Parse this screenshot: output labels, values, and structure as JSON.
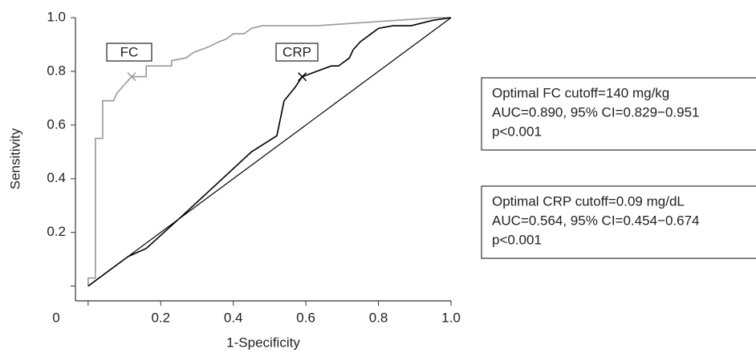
{
  "chart_data": {
    "type": "line",
    "xlabel": "1-Specificity",
    "ylabel": "Sensitivity",
    "xlim": [
      -0.035,
      1.0
    ],
    "ylim": [
      -0.055,
      1.0
    ],
    "xticks": [
      0,
      0.2,
      0.4,
      0.6,
      0.8,
      {
        "value": 1,
        "label": "1.0"
      }
    ],
    "yticks": [
      0,
      0.2,
      0.4,
      0.6,
      0.8,
      {
        "value": 1,
        "label": "1.0"
      }
    ],
    "reference": {
      "x": [
        0,
        1
      ],
      "values": [
        0,
        1
      ],
      "color": "#000000"
    },
    "series": [
      {
        "name": "FC",
        "color": "#999999",
        "x": [
          0,
          0,
          0.02,
          0.02,
          0.04,
          0.04,
          0.07,
          0.08,
          0.1,
          0.12,
          0.16,
          0.16,
          0.23,
          0.23,
          0.27,
          0.29,
          0.31,
          0.33,
          0.36,
          0.38,
          0.4,
          0.43,
          0.45,
          0.48,
          0.63,
          0.96,
          1.0
        ],
        "values": [
          0,
          0.03,
          0.03,
          0.55,
          0.55,
          0.69,
          0.69,
          0.72,
          0.75,
          0.78,
          0.78,
          0.82,
          0.82,
          0.84,
          0.85,
          0.87,
          0.88,
          0.89,
          0.91,
          0.92,
          0.94,
          0.94,
          0.96,
          0.97,
          0.97,
          1.0,
          1.0
        ],
        "cutoff": {
          "x": 0.12,
          "y": 0.78
        }
      },
      {
        "name": "CRP",
        "color": "#000000",
        "x": [
          0,
          0.11,
          0.16,
          0.25,
          0.45,
          0.52,
          0.54,
          0.57,
          0.59,
          0.63,
          0.67,
          0.69,
          0.72,
          0.73,
          0.75,
          0.78,
          0.8,
          0.84,
          0.89,
          0.95,
          1.0
        ],
        "values": [
          0,
          0.11,
          0.14,
          0.25,
          0.5,
          0.56,
          0.69,
          0.74,
          0.78,
          0.8,
          0.82,
          0.82,
          0.85,
          0.88,
          0.91,
          0.94,
          0.96,
          0.97,
          0.97,
          0.99,
          1.0
        ],
        "cutoff": {
          "x": 0.59,
          "y": 0.78
        }
      }
    ],
    "annotations": [
      [
        "Optimal FC cutoff=140 mg/kg",
        "AUC=0.890, 95% CI=0.829−0.951",
        "p<0.001"
      ],
      [
        "Optimal CRP cutoff=0.09 mg/dL",
        "AUC=0.564, 95% CI=0.454−0.674",
        "p<0.001"
      ]
    ]
  }
}
